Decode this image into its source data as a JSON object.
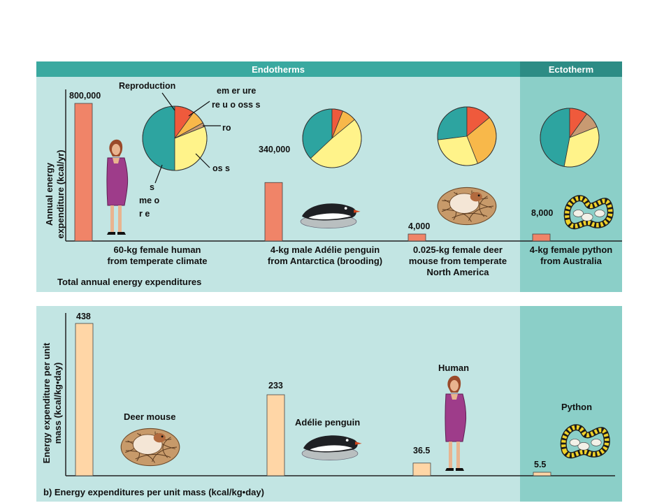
{
  "colors": {
    "panel_bg": "#c2e5e3",
    "ecto_bg": "#8bcfc8",
    "header_bg": "#3aa9a0",
    "header_ecto_bg": "#2d8c85",
    "bar_top": "#f08468",
    "bar_bottom": "#ffd6a6",
    "pie_teal": "#2da4a0",
    "pie_red": "#ef5a3c",
    "pie_orange": "#f8b84a",
    "pie_yellow": "#fff38a",
    "pie_tan": "#c89a72"
  },
  "header": {
    "endotherms": "Endotherms",
    "ectotherm": "Ectotherm"
  },
  "top_panel": {
    "ylabel_line1": "Annual energy",
    "ylabel_line2": "expenditure (kcal/yr)",
    "caption": "Total annual energy expenditures",
    "pie_labels": {
      "reproduction": "Reproduction",
      "temp_line1": "em er ure",
      "temp_line2": "re u     o  oss s",
      "growth": "ro",
      "loss": "os s",
      "basal_1": "s",
      "basal_2": "me    o",
      "basal_3": "r    e"
    },
    "animal_icons": [
      "human-figure",
      "penguin",
      "deer-mouse",
      "python"
    ]
  },
  "bottom_panel": {
    "ylabel_line1": "Energy expenditure per unit",
    "ylabel_line2": "mass (kcal/kg•day)",
    "caption": "b)  Energy expenditures per unit mass (kcal/kg•day)",
    "animal_icons": [
      "deer-mouse",
      "penguin",
      "human-figure",
      "python"
    ]
  },
  "chart_data": [
    {
      "type": "bar",
      "title": "Total annual energy expenditures",
      "ylabel": "Annual energy expenditure (kcal/yr)",
      "categories": [
        "60-kg female human from temperate climate",
        "4-kg male Adélie penguin from Antarctica (brooding)",
        "0.025-kg female deer mouse from temperate North America",
        "4-kg female python from Australia"
      ],
      "category_lines": [
        [
          "60-kg female human",
          "from temperate climate"
        ],
        [
          "4-kg male Adélie penguin",
          "from Antarctica (brooding)"
        ],
        [
          "0.025-kg female deer",
          "mouse from temperate",
          "North America"
        ],
        [
          "4-kg female python",
          "from Australia"
        ]
      ],
      "groups": [
        "Endotherms",
        "Endotherms",
        "Endotherms",
        "Ectotherm"
      ],
      "values": [
        800000,
        340000,
        4000,
        8000
      ],
      "value_labels": [
        "800,000",
        "340,000",
        "4,000",
        "8,000"
      ],
      "ylim": [
        0,
        800000
      ],
      "pies": [
        {
          "name": "60-kg female human",
          "slices": [
            0.5,
            0.1,
            0.07,
            0.02,
            0.31
          ]
        },
        {
          "name": "4-kg male Adélie penguin",
          "slices": [
            0.37,
            0.06,
            0.08,
            0.0,
            0.49
          ]
        },
        {
          "name": "0.025-kg female deer mouse",
          "slices": [
            0.27,
            0.14,
            0.3,
            0.0,
            0.29
          ]
        },
        {
          "name": "4-kg female python",
          "slices": [
            0.47,
            0.1,
            0.0,
            0.09,
            0.34
          ]
        }
      ]
    },
    {
      "type": "bar",
      "title": "Energy expenditures per unit mass (kcal/kg•day)",
      "ylabel": "Energy expenditure per unit mass (kcal/kg•day)",
      "categories": [
        "Deer mouse",
        "Adélie penguin",
        "Human",
        "Python"
      ],
      "groups": [
        "Endotherms",
        "Endotherms",
        "Endotherms",
        "Ectotherm"
      ],
      "values": [
        438,
        233,
        36.5,
        5.5
      ],
      "value_labels": [
        "438",
        "233",
        "36.5",
        "5.5"
      ],
      "ylim": [
        0,
        438
      ]
    }
  ]
}
